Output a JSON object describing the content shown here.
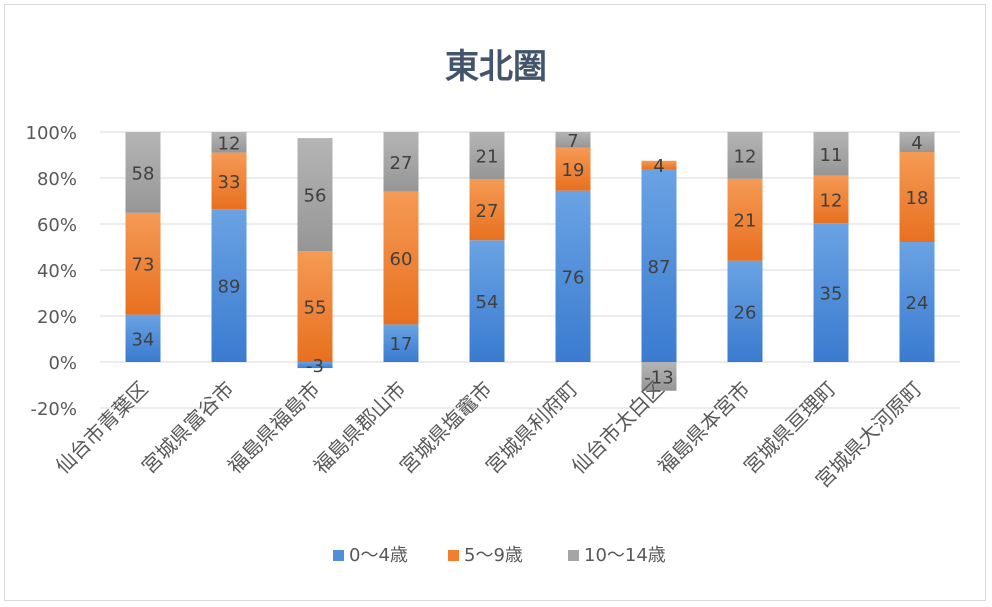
{
  "chart_data": {
    "type": "bar",
    "stacked": "percent",
    "title": "東北圏",
    "xlabel": "",
    "ylabel": "",
    "ylim": [
      -0.2,
      1.0
    ],
    "yticks": [
      "100%",
      "80%",
      "60%",
      "40%",
      "20%",
      "0%",
      "-20%"
    ],
    "ytick_values": [
      1.0,
      0.8,
      0.6,
      0.4,
      0.2,
      0.0,
      -0.2
    ],
    "grid": true,
    "legend_position": "bottom",
    "categories": [
      "仙台市青葉区",
      "宮城県富谷市",
      "福島県福島市",
      "福島県郡山市",
      "宮城県塩竈市",
      "宮城県利府町",
      "仙台市太白区",
      "福島県本宮市",
      "宮城県亘理町",
      "宮城県大河原町"
    ],
    "series": [
      {
        "name": "0～4歳",
        "color": "#4f8fd8",
        "values": [
          34,
          89,
          -3,
          17,
          54,
          76,
          87,
          26,
          35,
          24
        ]
      },
      {
        "name": "5～9歳",
        "color": "#f07f2e",
        "values": [
          73,
          33,
          55,
          60,
          27,
          19,
          4,
          21,
          12,
          18
        ]
      },
      {
        "name": "10～14歳",
        "color": "#a5a5a5",
        "values": [
          58,
          12,
          56,
          27,
          21,
          7,
          -13,
          12,
          11,
          4
        ]
      }
    ]
  }
}
